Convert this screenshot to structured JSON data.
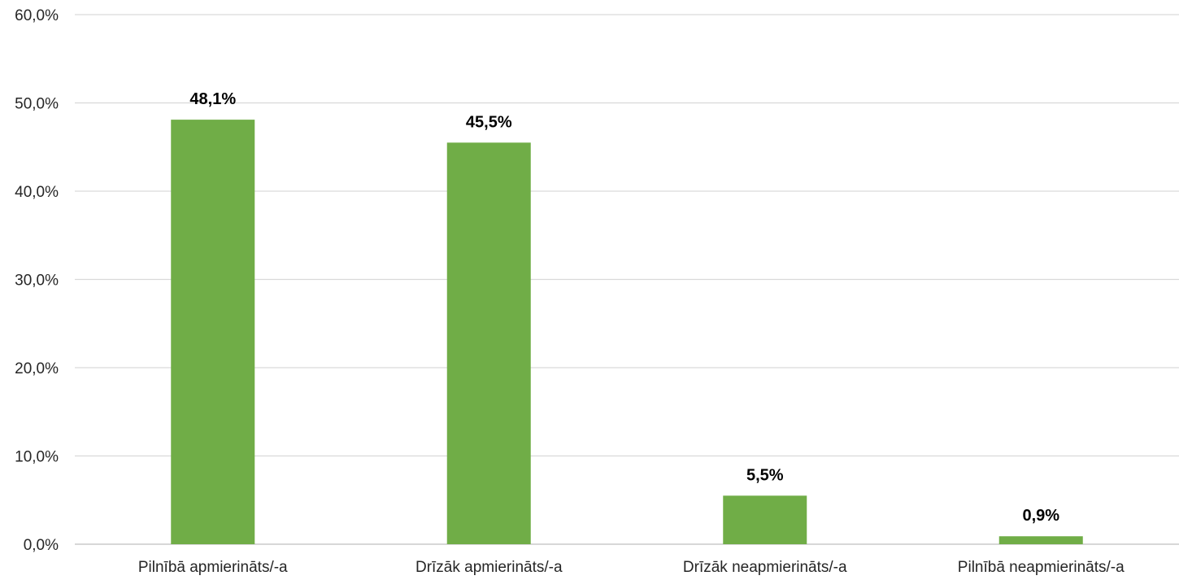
{
  "chart_data": {
    "type": "bar",
    "categories": [
      "Pilnībā apmierināts/-a",
      "Drīzāk apmierināts/-a",
      "Drīzāk neapmierināts/-a",
      "Pilnībā neapmierināts/-a"
    ],
    "values": [
      48.1,
      45.5,
      5.5,
      0.9
    ],
    "data_labels": [
      "48,1%",
      "45,5%",
      "5,5%",
      "0,9%"
    ],
    "title": "",
    "xlabel": "",
    "ylabel": "",
    "ylim": [
      0,
      60
    ],
    "yticks": [
      0,
      10,
      20,
      30,
      40,
      50,
      60
    ],
    "ytick_labels": [
      "0,0%",
      "10,0%",
      "20,0%",
      "30,0%",
      "40,0%",
      "50,0%",
      "60,0%"
    ],
    "grid": true,
    "legend": "none",
    "bar_color": "#70ad47"
  }
}
